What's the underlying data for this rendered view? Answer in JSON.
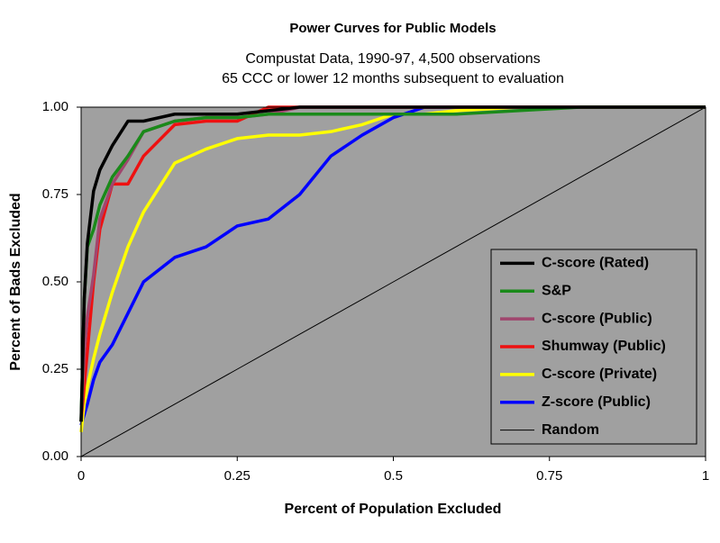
{
  "chart_data": {
    "type": "line",
    "title": "Power Curves for Public Models",
    "subtitle": [
      "Compustat Data, 1990-97, 4,500 observations",
      "65 CCC or lower 12 months subsequent to evaluation"
    ],
    "x_label": "Percent of Population Excluded",
    "y_label": "Percent of Bads Excluded",
    "x": [
      0,
      0.005,
      0.01,
      0.02,
      0.03,
      0.05,
      0.075,
      0.1,
      0.15,
      0.2,
      0.25,
      0.3,
      0.35,
      0.4,
      0.45,
      0.5,
      0.55,
      0.6,
      0.7,
      0.8,
      0.9,
      1
    ],
    "xlim": [
      0,
      1
    ],
    "ylim": [
      0,
      1
    ],
    "xticks": [
      0,
      0.25,
      0.5,
      0.75,
      1
    ],
    "yticks": [
      {
        "value": 0,
        "label": "0.00"
      },
      {
        "value": 0.25,
        "label": "0.25"
      },
      {
        "value": 0.5,
        "label": "0.50"
      },
      {
        "value": 0.75,
        "label": "0.75"
      },
      {
        "value": 1,
        "label": "1.00"
      }
    ],
    "background": "#a0a0a0",
    "series": [
      {
        "name": "C-score (Rated)",
        "color": "#000000",
        "values": [
          0.1,
          0.45,
          0.61,
          0.76,
          0.82,
          0.89,
          0.96,
          0.96,
          0.98,
          0.98,
          0.98,
          0.99,
          1,
          1,
          1,
          1,
          1,
          1,
          1,
          1,
          1,
          1
        ]
      },
      {
        "name": "S&P",
        "color": "#1a8a1a",
        "values": [
          0.1,
          0.45,
          0.6,
          0.65,
          0.72,
          0.8,
          0.86,
          0.93,
          0.96,
          0.97,
          0.97,
          0.98,
          0.98,
          0.98,
          0.98,
          0.98,
          0.98,
          0.98,
          0.99,
          1,
          1,
          1
        ]
      },
      {
        "name": "C-score (Public)",
        "color": "#a0466e",
        "values": [
          0.1,
          0.3,
          0.4,
          0.52,
          0.68,
          0.78,
          0.85,
          0.93,
          0.96,
          0.97,
          0.97,
          0.98,
          1,
          1,
          1,
          1,
          1,
          1,
          1,
          1,
          1,
          1
        ]
      },
      {
        "name": "Shumway (Public)",
        "color": "#ee1111",
        "values": [
          0.1,
          0.2,
          0.3,
          0.5,
          0.65,
          0.78,
          0.78,
          0.86,
          0.95,
          0.96,
          0.96,
          1,
          1,
          1,
          1,
          1,
          1,
          1,
          1,
          1,
          1,
          1
        ]
      },
      {
        "name": "C-score (Private)",
        "color": "#ffff00",
        "values": [
          0.07,
          0.15,
          0.2,
          0.28,
          0.35,
          0.47,
          0.6,
          0.7,
          0.84,
          0.88,
          0.91,
          0.92,
          0.92,
          0.93,
          0.95,
          0.98,
          0.98,
          0.99,
          1,
          1,
          1,
          1
        ]
      },
      {
        "name": "Z-score (Public)",
        "color": "#0000ff",
        "values": [
          0.09,
          0.12,
          0.15,
          0.22,
          0.27,
          0.32,
          0.41,
          0.5,
          0.57,
          0.6,
          0.66,
          0.68,
          0.75,
          0.86,
          0.92,
          0.97,
          1,
          1,
          1,
          1,
          1,
          1
        ]
      },
      {
        "name": "Random",
        "color": "#000000",
        "thin": true,
        "values": [
          0,
          0.005,
          0.01,
          0.02,
          0.03,
          0.05,
          0.075,
          0.1,
          0.15,
          0.2,
          0.25,
          0.3,
          0.35,
          0.4,
          0.45,
          0.5,
          0.55,
          0.6,
          0.7,
          0.8,
          0.9,
          1
        ]
      }
    ]
  }
}
